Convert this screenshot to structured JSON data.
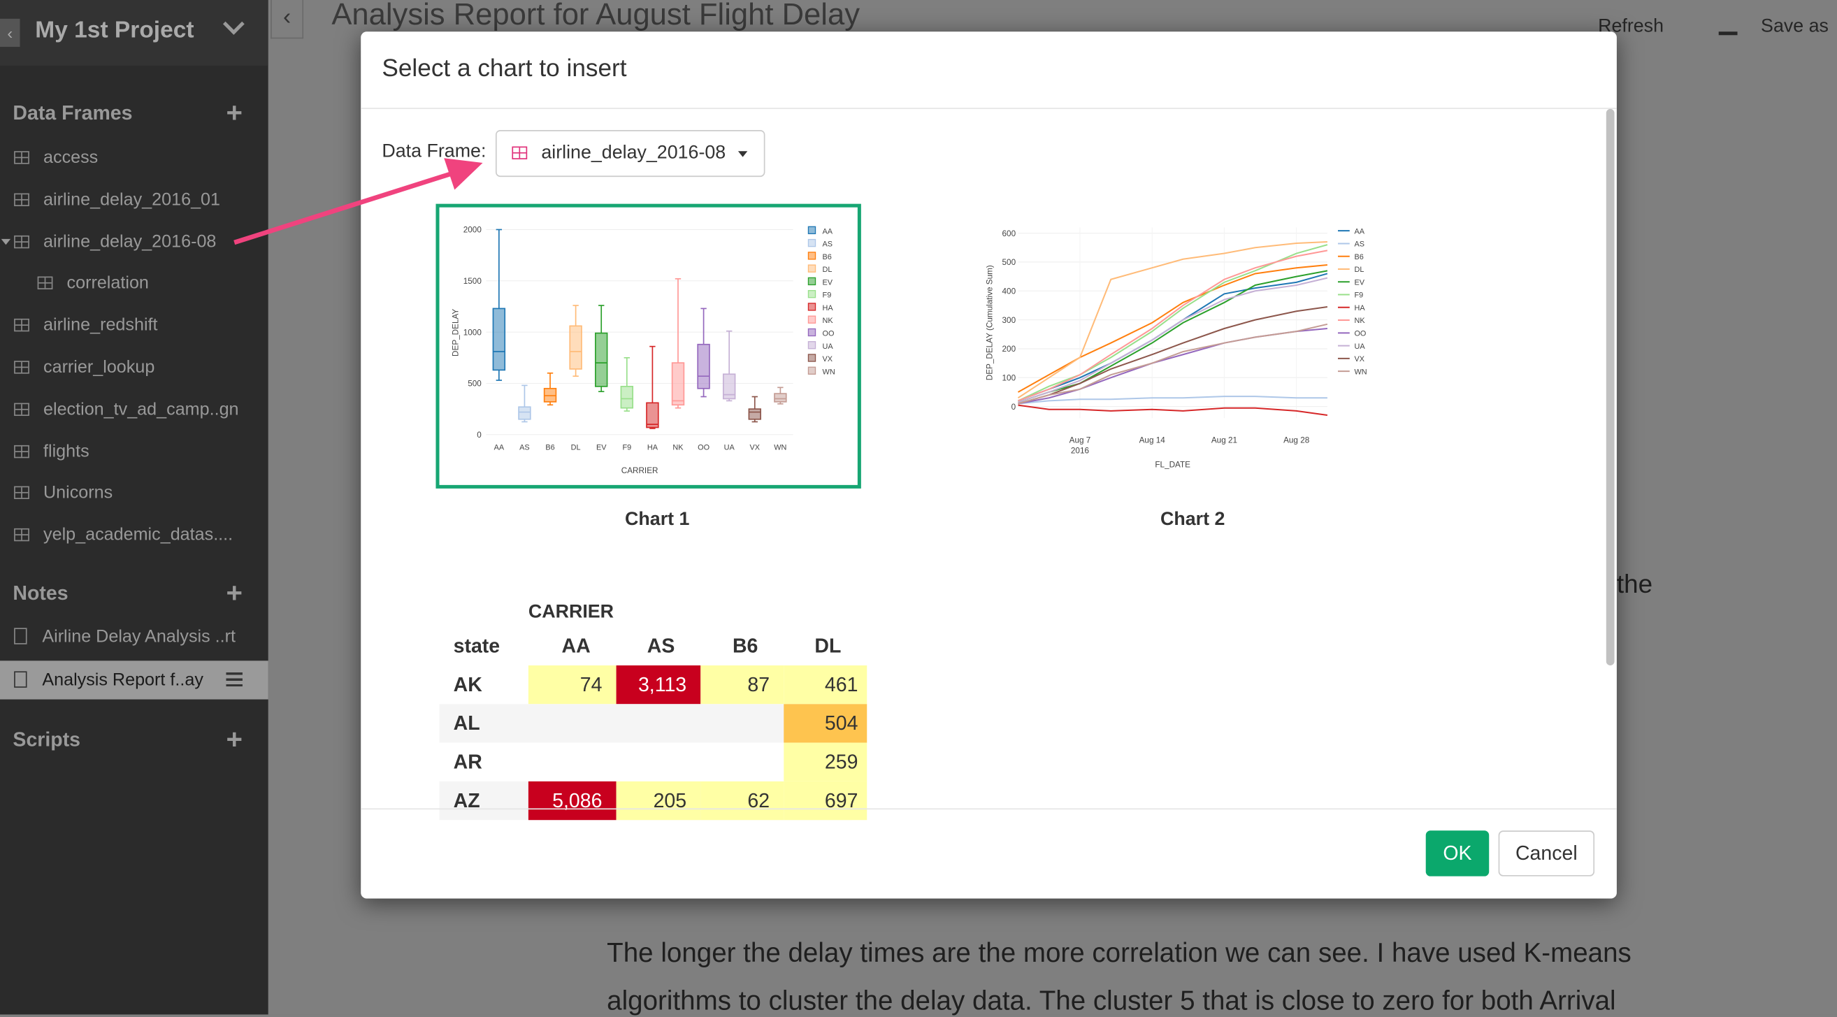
{
  "sidebar": {
    "project": "My 1st Project",
    "data_frames_title": "Data Frames",
    "data_frames": [
      "access",
      "airline_delay_2016_01",
      "airline_delay_2016-08",
      "correlation",
      "airline_redshift",
      "carrier_lookup",
      "election_tv_ad_camp..gn",
      "flights",
      "Unicorns",
      "yelp_academic_datas...."
    ],
    "notes_title": "Notes",
    "notes": [
      "Airline Delay Analysis ..rt",
      "Analysis Report f..ay"
    ],
    "scripts_title": "Scripts"
  },
  "header": {
    "title": "Analysis Report for August Flight Delay",
    "refresh": "Refresh",
    "save": "Save as"
  },
  "document": {
    "fragment": "the",
    "paragraph_lines": [
      "The longer the delay times are the more correlation we can see. I have used K-means",
      "algorithms to cluster the delay data. The cluster 5 that is close to zero for both Arrival"
    ]
  },
  "modal": {
    "title": "Select a chart to insert",
    "data_frame_label": "Data Frame:",
    "data_frame_value": "airline_delay_2016-08",
    "chart_labels": [
      "Chart 1",
      "Chart 2"
    ],
    "table": {
      "columns_title": "CARRIER",
      "columns": [
        "state",
        "AA",
        "AS",
        "B6",
        "DL"
      ],
      "rows": [
        [
          "AK",
          "74",
          "3,113",
          "87",
          "461"
        ],
        [
          "AL",
          null,
          null,
          null,
          "504"
        ],
        [
          "AR",
          null,
          null,
          null,
          "259"
        ],
        [
          "AZ",
          "5,086",
          "205",
          "62",
          "697"
        ]
      ],
      "cell_colors": [
        [
          null,
          "#ffffa5",
          "#c8001e",
          "#ffffa5",
          "#ffffa5"
        ],
        [
          null,
          null,
          null,
          null,
          "#fec44f"
        ],
        [
          null,
          null,
          null,
          null,
          "#ffffa5"
        ],
        [
          null,
          "#c8001e",
          "#ffffa5",
          "#ffffa5",
          "#ffffa5"
        ]
      ]
    },
    "ok": "OK",
    "cancel": "Cancel"
  },
  "chart_data": [
    {
      "type": "box",
      "x_label": "CARRIER",
      "y_label": "DEP_DELAY",
      "categories": [
        "AA",
        "AS",
        "B6",
        "DL",
        "EV",
        "F9",
        "HA",
        "NK",
        "OO",
        "UA",
        "VX",
        "WN"
      ],
      "series": [
        {
          "name": "AA",
          "color": "#1f77b4",
          "min": 530,
          "q1": 630,
          "median": 810,
          "q3": 1230,
          "max": 2000
        },
        {
          "name": "AS",
          "color": "#aec7e8",
          "min": 125,
          "q1": 150,
          "median": 220,
          "q3": 270,
          "max": 480
        },
        {
          "name": "B6",
          "color": "#ff7f0e",
          "min": 290,
          "q1": 320,
          "median": 380,
          "q3": 450,
          "max": 600
        },
        {
          "name": "DL",
          "color": "#ffbb78",
          "min": 570,
          "q1": 640,
          "median": 810,
          "q3": 1060,
          "max": 1260
        },
        {
          "name": "EV",
          "color": "#2ca02c",
          "min": 420,
          "q1": 470,
          "median": 700,
          "q3": 990,
          "max": 1260
        },
        {
          "name": "F9",
          "color": "#98df8a",
          "min": 230,
          "q1": 260,
          "median": 350,
          "q3": 470,
          "max": 750
        },
        {
          "name": "HA",
          "color": "#d62728",
          "min": 60,
          "q1": 70,
          "median": 100,
          "q3": 310,
          "max": 860
        },
        {
          "name": "NK",
          "color": "#ff9896",
          "min": 260,
          "q1": 290,
          "median": 330,
          "q3": 700,
          "max": 1520
        },
        {
          "name": "OO",
          "color": "#9467bd",
          "min": 370,
          "q1": 450,
          "median": 570,
          "q3": 880,
          "max": 1230
        },
        {
          "name": "UA",
          "color": "#c5b0d5",
          "min": 330,
          "q1": 350,
          "median": 390,
          "q3": 590,
          "max": 1010
        },
        {
          "name": "VX",
          "color": "#8c564b",
          "min": 125,
          "q1": 150,
          "median": 220,
          "q3": 250,
          "max": 370
        },
        {
          "name": "WN",
          "color": "#c49c94",
          "min": 300,
          "q1": 320,
          "median": 350,
          "q3": 400,
          "max": 460
        }
      ],
      "ylim": [
        -60,
        2050
      ],
      "yticks": [
        0,
        500,
        1000,
        1500,
        2000
      ],
      "grid": true
    },
    {
      "type": "line",
      "x_label": "FL_DATE",
      "y_label": "DEP_DELAY (Cumulative Sum)",
      "x": [
        "2016-08-01",
        "2016-08-04",
        "2016-08-07",
        "2016-08-10",
        "2016-08-14",
        "2016-08-17",
        "2016-08-21",
        "2016-08-24",
        "2016-08-28",
        "2016-08-31"
      ],
      "series": [
        {
          "name": "AA",
          "color": "#1f77b4",
          "values": [
            20,
            60,
            100,
            150,
            230,
            300,
            390,
            410,
            430,
            460
          ]
        },
        {
          "name": "AS",
          "color": "#aec7e8",
          "values": [
            10,
            20,
            25,
            25,
            30,
            30,
            35,
            35,
            30,
            30
          ]
        },
        {
          "name": "B6",
          "color": "#ff7f0e",
          "values": [
            50,
            110,
            170,
            220,
            290,
            360,
            420,
            460,
            480,
            490
          ]
        },
        {
          "name": "DL",
          "color": "#ffbb78",
          "values": [
            30,
            100,
            170,
            440,
            480,
            510,
            530,
            550,
            565,
            570
          ]
        },
        {
          "name": "EV",
          "color": "#2ca02c",
          "values": [
            15,
            50,
            80,
            140,
            220,
            290,
            360,
            420,
            450,
            470
          ]
        },
        {
          "name": "F9",
          "color": "#98df8a",
          "values": [
            20,
            70,
            110,
            170,
            260,
            340,
            430,
            470,
            530,
            560
          ]
        },
        {
          "name": "HA",
          "color": "#d62728",
          "values": [
            5,
            -10,
            -10,
            -15,
            -10,
            -15,
            -5,
            -5,
            -15,
            -30
          ]
        },
        {
          "name": "NK",
          "color": "#ff9896",
          "values": [
            20,
            60,
            110,
            180,
            270,
            350,
            440,
            480,
            520,
            540
          ]
        },
        {
          "name": "OO",
          "color": "#9467bd",
          "values": [
            10,
            30,
            60,
            100,
            150,
            180,
            220,
            240,
            260,
            270
          ]
        },
        {
          "name": "UA",
          "color": "#c5b0d5",
          "values": [
            15,
            50,
            90,
            150,
            230,
            300,
            370,
            400,
            420,
            445
          ]
        },
        {
          "name": "VX",
          "color": "#8c564b",
          "values": [
            10,
            40,
            80,
            130,
            180,
            220,
            270,
            300,
            330,
            345
          ]
        },
        {
          "name": "WN",
          "color": "#c49c94",
          "values": [
            10,
            40,
            60,
            110,
            150,
            190,
            220,
            240,
            260,
            285
          ]
        }
      ],
      "xlim": [
        "2016-08-01",
        "2016-08-31"
      ],
      "xticks": [
        {
          "value": "2016-08-07",
          "label": "Aug 7"
        },
        {
          "value": "2016-08-14",
          "label": "Aug 14"
        },
        {
          "value": "2016-08-21",
          "label": "Aug 21"
        },
        {
          "value": "2016-08-28",
          "label": "Aug 28"
        }
      ],
      "x_year_label": "2016",
      "ylim": [
        -40,
        620
      ],
      "yticks": [
        0,
        100,
        200,
        300,
        400,
        500,
        600
      ],
      "grid": true
    }
  ]
}
